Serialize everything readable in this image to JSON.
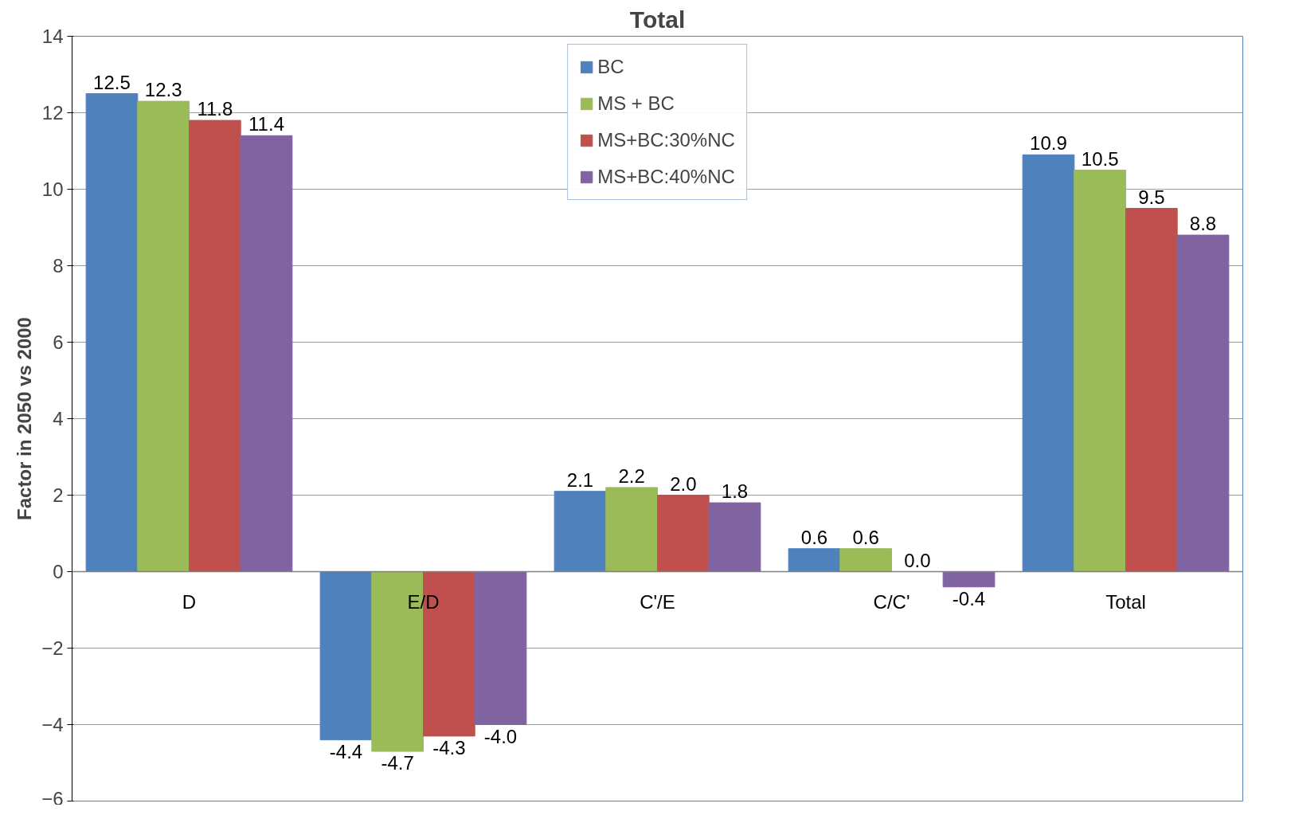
{
  "chart_data": {
    "type": "bar",
    "title": "Total",
    "ylabel": "Factor in 2050 vs 2000",
    "categories": [
      "D",
      "E/D",
      "C'/E",
      "C/C'",
      "Total"
    ],
    "series": [
      {
        "name": "BC",
        "color": "#4f81bd",
        "values": [
          12.5,
          -4.4,
          2.1,
          0.6,
          10.9
        ],
        "value_labels": [
          "12.5",
          "-4.4",
          "2.1",
          "0.6",
          "10.9"
        ]
      },
      {
        "name": "MS + BC",
        "color": "#9bbb59",
        "values": [
          12.3,
          -4.7,
          2.2,
          0.6,
          10.5
        ],
        "value_labels": [
          "12.3",
          "-4.7",
          "2.2",
          "0.6",
          "10.5"
        ]
      },
      {
        "name": "MS+BC:30%NC",
        "color": "#c0504d",
        "values": [
          11.8,
          -4.3,
          2.0,
          0.0,
          9.5
        ],
        "value_labels": [
          "11.8",
          "-4.3",
          "2.0",
          "0.0",
          "9.5"
        ]
      },
      {
        "name": "MS+BC:40%NC",
        "color": "#8064a2",
        "values": [
          11.4,
          -4.0,
          1.8,
          -0.4,
          8.8
        ],
        "value_labels": [
          "11.4",
          "-4.0",
          "1.8",
          "-0.4",
          "8.8"
        ]
      }
    ],
    "ylim": [
      -6,
      14
    ],
    "yticks": [
      -6,
      -4,
      -2,
      0,
      2,
      4,
      6,
      8,
      10,
      12,
      14
    ],
    "grid": "y",
    "legend": "top"
  }
}
